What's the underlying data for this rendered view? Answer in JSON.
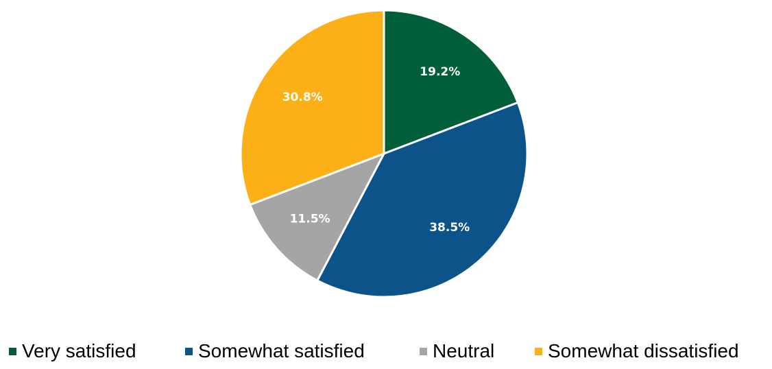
{
  "chart_data": {
    "type": "pie",
    "title": "",
    "legend_position": "bottom",
    "start_angle_deg": 0,
    "direction": "clockwise",
    "slices": [
      {
        "label": "Very satisfied",
        "value": 19.2,
        "display": "19.2%",
        "color": "#005E3A"
      },
      {
        "label": "Somewhat satisfied",
        "value": 38.5,
        "display": "38.5%",
        "color": "#0B5388"
      },
      {
        "label": "Neutral",
        "value": 11.5,
        "display": "11.5%",
        "color": "#A5A5A5"
      },
      {
        "label": "Somewhat dissatisfied",
        "value": 30.8,
        "display": "30.8%",
        "color": "#FBB018"
      }
    ]
  }
}
